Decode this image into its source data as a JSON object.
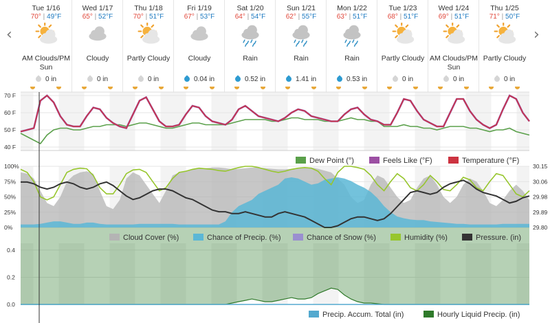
{
  "nav": {
    "prev_icon": "chevron-left",
    "next_icon": "chevron-right",
    "prev_glyph": "‹",
    "next_glyph": "›"
  },
  "days": [
    {
      "date": "Tue 1/16",
      "high": "70°",
      "low": "49°F",
      "condition": "AM Clouds/PM Sun",
      "icon": "sun-cloud",
      "precip": "0 in"
    },
    {
      "date": "Wed 1/17",
      "high": "65°",
      "low": "52°F",
      "condition": "Cloudy",
      "icon": "cloud",
      "precip": "0 in"
    },
    {
      "date": "Thu 1/18",
      "high": "70°",
      "low": "51°F",
      "condition": "Partly Cloudy",
      "icon": "sun-cloud",
      "precip": "0 in"
    },
    {
      "date": "Fri 1/19",
      "high": "67°",
      "low": "53°F",
      "condition": "Cloudy",
      "icon": "cloud",
      "precip": "0.04 in"
    },
    {
      "date": "Sat 1/20",
      "high": "64°",
      "low": "54°F",
      "condition": "Rain",
      "icon": "rain",
      "precip": "0.52 in"
    },
    {
      "date": "Sun 1/21",
      "high": "62°",
      "low": "55°F",
      "condition": "Rain",
      "icon": "rain",
      "precip": "1.41 in"
    },
    {
      "date": "Mon 1/22",
      "high": "63°",
      "low": "51°F",
      "condition": "Rain",
      "icon": "rain",
      "precip": "0.53 in"
    },
    {
      "date": "Tue 1/23",
      "high": "68°",
      "low": "51°F",
      "condition": "Partly Cloudy",
      "icon": "sun-cloud",
      "precip": "0 in"
    },
    {
      "date": "Wed 1/24",
      "high": "69°",
      "low": "51°F",
      "condition": "AM Clouds/PM Sun",
      "icon": "sun-cloud",
      "precip": "0 in"
    },
    {
      "date": "Thu 1/25",
      "high": "71°",
      "low": "50°F",
      "condition": "Partly Cloudy",
      "icon": "sun-cloud",
      "precip": "0 in"
    }
  ],
  "colors": {
    "temperature": "#cc3340",
    "feels_like": "#9c4fa3",
    "dew_point": "#5aa04a",
    "cloud_cover": "#b4b4b4",
    "chance_precip": "#5bb7d6",
    "chance_snow": "#9a8fd0",
    "humidity": "#97c62d",
    "pressure": "#333333",
    "precip_accum": "#53a9cf",
    "hourly_precip": "#2f7a2a",
    "high_temp": "#e0483b",
    "low_temp": "#1c79c0"
  },
  "chart_data": [
    {
      "type": "line",
      "title": "",
      "ylabel": "°F",
      "y_ticks": [
        "70 F",
        "60 F",
        "50 F",
        "40 F"
      ],
      "ylim": [
        38,
        72
      ],
      "x_start": "Tue 1/16 00:00",
      "x_step_hours": 3,
      "series": [
        {
          "name": "Temperature (°F)",
          "values": [
            49,
            50,
            51,
            67,
            70,
            66,
            58,
            53,
            52,
            52,
            58,
            63,
            62,
            57,
            54,
            52,
            51,
            59,
            67,
            69,
            62,
            55,
            52,
            52,
            53,
            59,
            64,
            63,
            58,
            55,
            54,
            53,
            56,
            62,
            64,
            61,
            58,
            57,
            56,
            55,
            57,
            60,
            62,
            61,
            58,
            57,
            56,
            55,
            55,
            59,
            62,
            63,
            59,
            56,
            55,
            53,
            53,
            60,
            68,
            67,
            61,
            56,
            54,
            52,
            52,
            60,
            68,
            68,
            61,
            56,
            53,
            51,
            53,
            62,
            70,
            68,
            60,
            55
          ]
        },
        {
          "name": "Feels Like (°F)",
          "values": [
            49,
            50,
            51,
            67,
            70,
            66,
            58,
            53,
            52,
            52,
            58,
            63,
            62,
            57,
            54,
            52,
            51,
            59,
            67,
            69,
            62,
            55,
            52,
            52,
            53,
            59,
            64,
            63,
            58,
            55,
            54,
            53,
            56,
            62,
            64,
            61,
            58,
            57,
            56,
            55,
            57,
            60,
            62,
            61,
            58,
            57,
            56,
            55,
            55,
            59,
            62,
            63,
            59,
            56,
            55,
            53,
            53,
            60,
            68,
            67,
            61,
            56,
            54,
            52,
            52,
            60,
            68,
            68,
            61,
            56,
            53,
            51,
            53,
            62,
            70,
            68,
            60,
            55
          ]
        },
        {
          "name": "Dew Point (°)",
          "values": [
            48,
            46,
            44,
            42,
            47,
            50,
            51,
            51,
            50,
            50,
            51,
            52,
            52,
            53,
            53,
            53,
            52,
            53,
            54,
            54,
            53,
            52,
            51,
            51,
            52,
            53,
            54,
            54,
            53,
            53,
            53,
            53,
            54,
            55,
            56,
            56,
            56,
            56,
            55,
            55,
            56,
            57,
            57,
            56,
            56,
            56,
            55,
            55,
            55,
            56,
            57,
            56,
            56,
            55,
            55,
            52,
            52,
            52,
            53,
            52,
            52,
            51,
            51,
            50,
            51,
            52,
            52,
            52,
            51,
            51,
            50,
            49,
            50,
            50,
            51,
            49,
            48,
            47
          ]
        }
      ]
    },
    {
      "type": "area",
      "title": "",
      "y_ticks_left": [
        "100%",
        "75%",
        "50%",
        "25%",
        "0%"
      ],
      "y_ticks_right": [
        "30.15",
        "30.06",
        "29.98",
        "29.89",
        "29.80"
      ],
      "ylim_left": [
        0,
        100
      ],
      "ylim_right": [
        29.8,
        30.15
      ],
      "x_start": "Tue 1/16 00:00",
      "x_step_hours": 3,
      "series": [
        {
          "name": "Cloud Cover (%)",
          "values": [
            90,
            88,
            80,
            60,
            40,
            35,
            50,
            75,
            85,
            90,
            92,
            88,
            60,
            35,
            30,
            45,
            80,
            90,
            85,
            70,
            55,
            40,
            60,
            85,
            90,
            92,
            95,
            96,
            97,
            98,
            98,
            97,
            95,
            96,
            97,
            98,
            98,
            97,
            96,
            95,
            95,
            96,
            97,
            98,
            98,
            96,
            93,
            90,
            80,
            70,
            50,
            40,
            45,
            70,
            85,
            80,
            65,
            50,
            40,
            45,
            65,
            80,
            85,
            70,
            50,
            40,
            50,
            70,
            80,
            75,
            60,
            40,
            35,
            45,
            60,
            70,
            60,
            45
          ]
        },
        {
          "name": "Chance of Precip. (%)",
          "values": [
            5,
            5,
            5,
            6,
            8,
            10,
            10,
            8,
            6,
            6,
            8,
            8,
            6,
            5,
            5,
            5,
            5,
            5,
            6,
            6,
            6,
            6,
            6,
            6,
            5,
            5,
            5,
            5,
            5,
            5,
            5,
            10,
            25,
            35,
            40,
            45,
            55,
            60,
            65,
            70,
            80,
            82,
            80,
            75,
            70,
            72,
            78,
            80,
            82,
            80,
            76,
            70,
            65,
            58,
            48,
            35,
            25,
            18,
            15,
            13,
            12,
            12,
            10,
            9,
            8,
            7,
            6,
            6,
            5,
            5,
            5,
            5,
            5,
            6,
            6,
            6,
            6,
            6
          ]
        },
        {
          "name": "Chance of Snow (%)",
          "values": [
            0,
            0,
            0,
            0,
            0,
            0,
            0,
            0,
            0,
            0,
            0,
            0,
            0,
            0,
            0,
            0,
            0,
            0,
            0,
            0,
            0,
            0,
            0,
            0,
            0,
            0,
            0,
            0,
            0,
            0,
            0,
            0,
            0,
            0,
            0,
            0,
            0,
            0,
            0,
            0,
            0,
            0,
            0,
            0,
            0,
            0,
            0,
            0,
            0,
            0,
            0,
            0,
            0,
            0,
            0,
            0,
            0,
            0,
            0,
            0,
            0,
            0,
            0,
            0,
            0,
            0,
            0,
            0,
            0,
            0,
            0,
            0,
            0,
            0,
            0,
            0,
            0,
            0
          ]
        },
        {
          "name": "Humidity (%)",
          "values": [
            95,
            90,
            75,
            50,
            45,
            50,
            70,
            90,
            95,
            97,
            96,
            85,
            65,
            55,
            55,
            70,
            88,
            94,
            95,
            90,
            75,
            60,
            65,
            80,
            90,
            92,
            95,
            97,
            96,
            95,
            93,
            92,
            95,
            98,
            100,
            100,
            98,
            95,
            92,
            90,
            92,
            95,
            97,
            98,
            97,
            92,
            80,
            70,
            90,
            100,
            100,
            98,
            95,
            85,
            70,
            60,
            75,
            88,
            80,
            65,
            60,
            70,
            85,
            75,
            62,
            60,
            70,
            82,
            78,
            65,
            60,
            75,
            88,
            85,
            70,
            55,
            50,
            60
          ]
        },
        {
          "name": "Pressure. (in)",
          "values": [
            30.06,
            30.06,
            30.05,
            30.03,
            30.02,
            30.03,
            30.05,
            30.06,
            30.05,
            30.03,
            30.02,
            30.03,
            30.05,
            30.06,
            30.04,
            30.01,
            29.98,
            29.96,
            29.97,
            29.99,
            30.01,
            30.02,
            30.02,
            30.01,
            29.99,
            29.97,
            29.96,
            29.94,
            29.92,
            29.9,
            29.89,
            29.89,
            29.88,
            29.88,
            29.89,
            29.88,
            29.87,
            29.86,
            29.86,
            29.88,
            29.89,
            29.88,
            29.87,
            29.86,
            29.84,
            29.82,
            29.8,
            29.8,
            29.81,
            29.83,
            29.85,
            29.86,
            29.86,
            29.85,
            29.84,
            29.85,
            29.88,
            29.92,
            29.96,
            30.0,
            30.01,
            30.0,
            29.99,
            30.0,
            30.03,
            30.05,
            30.06,
            30.07,
            30.05,
            30.02,
            30.0,
            29.99,
            29.98,
            29.96,
            29.94,
            29.95,
            29.97,
            29.98
          ]
        }
      ]
    },
    {
      "type": "area",
      "title": "",
      "y_ticks": [
        "0.4",
        "0.2",
        "0.0"
      ],
      "ylim": [
        0,
        0.45
      ],
      "x_start": "Tue 1/16 00:00",
      "x_step_hours": 3,
      "series": [
        {
          "name": "Precip. Accum. Total (in)",
          "values": [
            0,
            0,
            0,
            0,
            0,
            0,
            0,
            0,
            0,
            0,
            0,
            0,
            0,
            0,
            0,
            0,
            0,
            0,
            0,
            0,
            0,
            0,
            0,
            0,
            0,
            0,
            0,
            0,
            0,
            0,
            0,
            0,
            0,
            0,
            0,
            0,
            0,
            0,
            0,
            0,
            0,
            0,
            0,
            0,
            0,
            0,
            0,
            0,
            0,
            0,
            0,
            0,
            0,
            0,
            0,
            0,
            0,
            0,
            0,
            0,
            0,
            0,
            0,
            0,
            0,
            0,
            0,
            0,
            0,
            0,
            0,
            0,
            0,
            0,
            0,
            0,
            0,
            0
          ]
        },
        {
          "name": "Hourly Liquid Precip. (in)",
          "values": [
            0,
            0,
            0,
            0,
            0,
            0,
            0,
            0,
            0,
            0,
            0,
            0,
            0,
            0,
            0,
            0,
            0,
            0,
            0,
            0,
            0,
            0,
            0,
            0,
            0,
            0,
            0,
            0,
            0,
            0,
            0,
            0,
            0.01,
            0.02,
            0.03,
            0.04,
            0.03,
            0.02,
            0.02,
            0.03,
            0.04,
            0.05,
            0.04,
            0.04,
            0.05,
            0.08,
            0.1,
            0.12,
            0.11,
            0.07,
            0.04,
            0.02,
            0.01,
            0.01,
            0.005,
            0,
            0,
            0,
            0,
            0,
            0,
            0,
            0,
            0,
            0,
            0,
            0,
            0,
            0,
            0,
            0,
            0,
            0,
            0,
            0,
            0,
            0,
            0
          ]
        }
      ]
    }
  ]
}
